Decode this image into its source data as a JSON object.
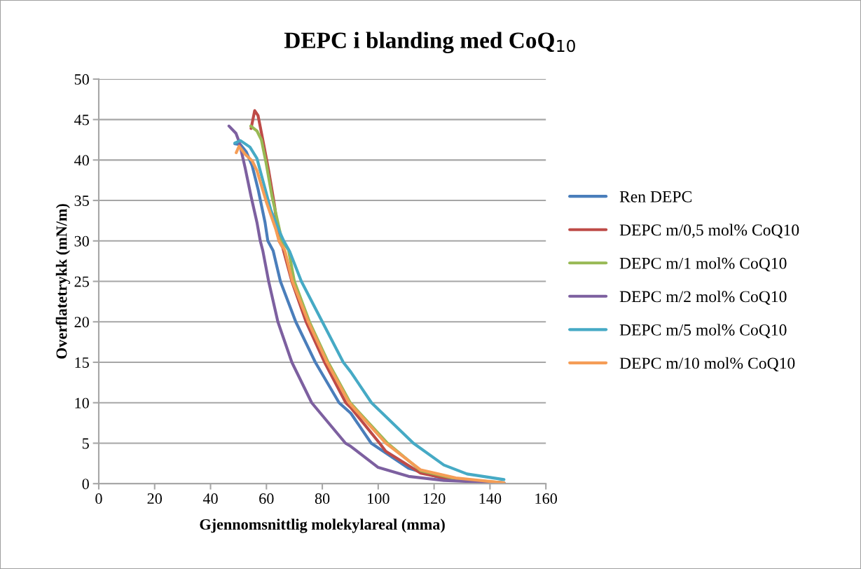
{
  "chart_data": {
    "type": "line",
    "title": "DEPC i blanding med CoQ$_{10}$",
    "xlabel": "Gjennomsnittlig molekylareal (mma)",
    "ylabel": "Overflatetrykk (mN/m)",
    "xlim": [
      0,
      160
    ],
    "xticks": [
      0,
      20,
      40,
      60,
      80,
      100,
      120,
      140,
      160
    ],
    "ylim": [
      0,
      50
    ],
    "yticks": [
      0,
      5,
      10,
      15,
      20,
      25,
      30,
      35,
      40,
      45,
      50
    ],
    "grid": "y",
    "legend": "right",
    "marker": "none",
    "line_style": "solid",
    "series": [
      {
        "name": "Ren DEPC",
        "color": "#4a7ebb",
        "x": [
          48.7,
          50.7,
          52.8,
          54.9,
          57,
          59.5,
          60.5,
          62.4,
          65,
          70.5,
          77.5,
          86,
          90.2,
          97.5,
          110.9,
          123.5,
          145
        ],
        "values": [
          42,
          41.9,
          41,
          39.3,
          36.4,
          32.3,
          30,
          28.8,
          25,
          20,
          15,
          10,
          8.7,
          5,
          1.9,
          0.6,
          0.1
        ]
      },
      {
        "name": "DEPC m/0,5 mol% CoQ10",
        "color": "#be4b48",
        "x": [
          54.5,
          55.8,
          57,
          58.7,
          60.8,
          62.9,
          64.5,
          65.8,
          69.1,
          74.2,
          80.8,
          88.4,
          90.2,
          100.5,
          102.7,
          115.2,
          127.8,
          145
        ],
        "values": [
          43.9,
          46.1,
          45.5,
          42.5,
          38.7,
          34.4,
          30,
          29.2,
          25,
          20,
          15,
          10,
          9.4,
          5,
          4,
          1.3,
          0.4,
          0.1
        ]
      },
      {
        "name": "DEPC m/1 mol% CoQ10",
        "color": "#98b954",
        "x": [
          54.4,
          56.6,
          58.2,
          59.9,
          62,
          65,
          65.4,
          67.9,
          70,
          75.4,
          82.1,
          90,
          103.3,
          115.2,
          127.8,
          145
        ],
        "values": [
          44.2,
          43.6,
          42.5,
          39.6,
          35.5,
          30.9,
          30,
          28.9,
          25,
          20,
          15,
          10,
          5,
          1.6,
          0.6,
          0.1
        ]
      },
      {
        "name": "DEPC m/2 mol% CoQ10",
        "color": "#7d60a0",
        "x": [
          46.6,
          49.1,
          50.3,
          52.4,
          54.5,
          56.6,
          57.8,
          58.7,
          60.8,
          64.1,
          69.1,
          76.2,
          88.3,
          90.2,
          100,
          110.9,
          123.5,
          145
        ],
        "values": [
          44.2,
          43.3,
          42.2,
          39,
          35.5,
          32.3,
          30,
          28.8,
          25,
          20,
          15,
          10,
          5,
          4.6,
          2,
          0.9,
          0.4,
          0.1
        ]
      },
      {
        "name": "DEPC m/5 mol% CoQ10",
        "color": "#46aac5",
        "x": [
          48.7,
          50.7,
          54.1,
          56.6,
          58.7,
          61.6,
          65,
          66.2,
          68.3,
          72.5,
          80,
          87.5,
          90.2,
          97.6,
          112.6,
          123.5,
          131.8,
          145
        ],
        "values": [
          42.1,
          42.4,
          41.6,
          40.2,
          37.5,
          33.8,
          30.9,
          30,
          28.7,
          25,
          20,
          15,
          13.8,
          10,
          5,
          2.3,
          1.2,
          0.5
        ]
      },
      {
        "name": "DEPC m/10 mol% CoQ10",
        "color": "#f59d56",
        "x": [
          49.2,
          50.2,
          52.4,
          54.9,
          56.6,
          59.9,
          63.3,
          64.5,
          66.6,
          69.3,
          75,
          81.7,
          89.6,
          102.7,
          115.2,
          127.8,
          145
        ],
        "values": [
          40.9,
          41.7,
          40.7,
          39.9,
          38.7,
          34.9,
          31.5,
          30,
          28.8,
          25,
          20,
          15,
          10,
          5,
          1.7,
          0.7,
          0.1
        ]
      }
    ]
  }
}
